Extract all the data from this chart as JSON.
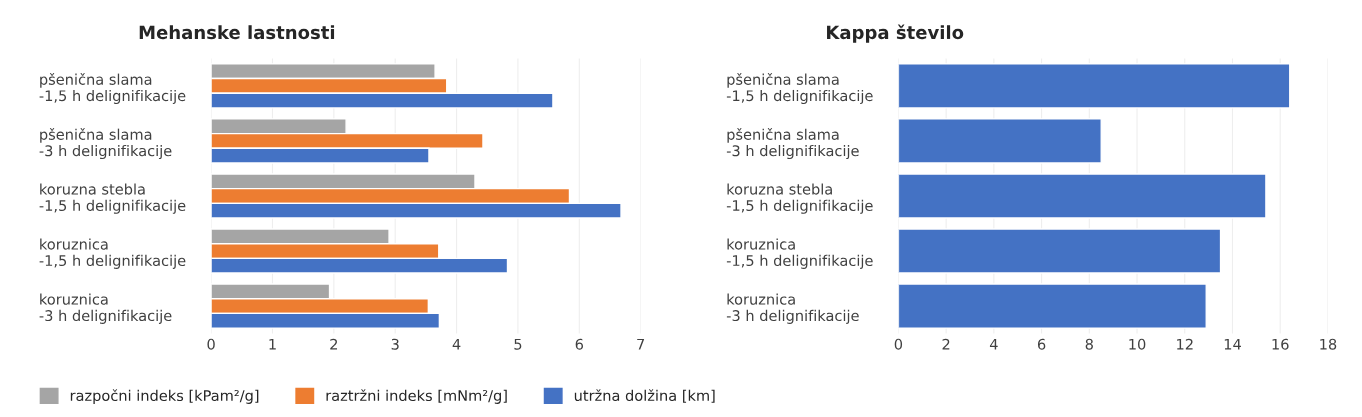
{
  "chart_data": [
    {
      "type": "bar",
      "orientation": "horizontal",
      "title": "Mehanske lastnosti",
      "categories": [
        "pšenična slama\n-1,5 h delignifikacije",
        "pšenična slama\n-3 h delignifikacije",
        "koruzna stebla\n-1,5 h delignifikacije",
        "koruznica\n-1,5 h delignifikacije",
        "koruznica\n-3 h delignifikacije"
      ],
      "series": [
        {
          "name": "razpočni indeks [kPam²/g]",
          "color": "#a5a5a5",
          "values": [
            3.65,
            2.2,
            4.3,
            2.9,
            1.93
          ]
        },
        {
          "name": "raztržni indeks [mNm²/g]",
          "color": "#ed7d31",
          "values": [
            3.84,
            4.43,
            5.84,
            3.71,
            3.54
          ]
        },
        {
          "name": "utržna dolžina [km]",
          "color": "#4472c4",
          "values": [
            5.57,
            3.55,
            6.68,
            4.83,
            3.72
          ]
        }
      ],
      "xlim": [
        0,
        7
      ],
      "xticks": [
        0,
        1,
        2,
        3,
        4,
        5,
        6,
        7
      ],
      "grid": "x",
      "legend": "bottom"
    },
    {
      "type": "bar",
      "orientation": "horizontal",
      "title": "Kappa število",
      "categories": [
        "pšenična slama\n-1,5 h delignifikacije",
        "pšenična slama\n-3 h delignifikacije",
        "koruzna stebla\n-1,5 h delignifikacije",
        "koruznica\n-1,5 h delignifikacije",
        "koruznica\n-3 h delignifikacije"
      ],
      "series": [
        {
          "color": "#4472c4",
          "values": [
            16.4,
            8.5,
            15.4,
            13.5,
            12.9
          ]
        }
      ],
      "xlim": [
        0,
        18
      ],
      "xticks": [
        0,
        2,
        4,
        6,
        8,
        10,
        12,
        14,
        16,
        18
      ],
      "grid": "x"
    }
  ]
}
